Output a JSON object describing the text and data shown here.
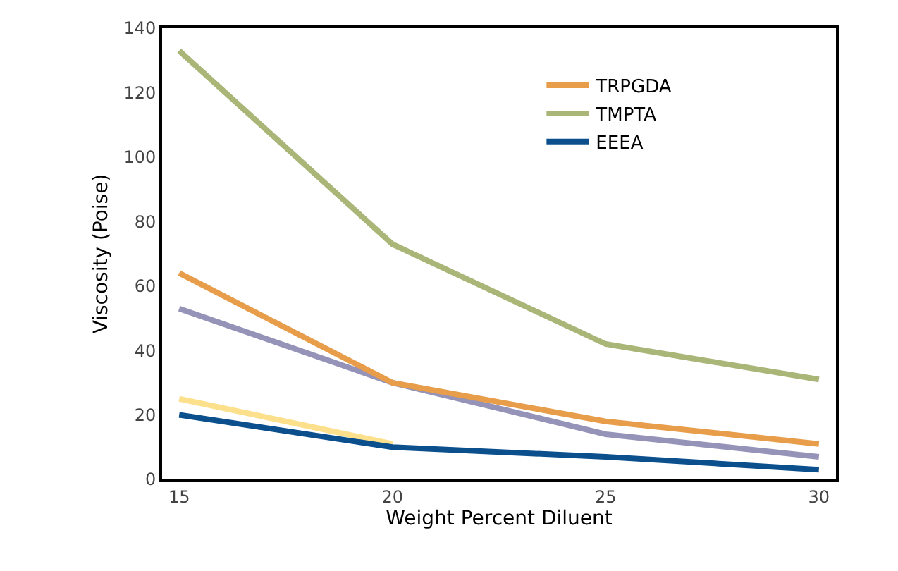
{
  "chart_data": {
    "type": "line",
    "xlabel": "Weight Percent Diluent",
    "ylabel": "Viscosity (Poise)",
    "x": [
      15,
      20,
      25,
      30
    ],
    "series": [
      {
        "color": "#fde08c",
        "values": [
          25,
          11,
          null,
          null
        ]
      },
      {
        "color": "#9593b8",
        "values": [
          53,
          30,
          14,
          7
        ]
      },
      {
        "name": "TRPGDA",
        "color": "#e79d4a",
        "values": [
          64,
          30,
          18,
          11
        ]
      },
      {
        "name": "TMPTA",
        "color": "#a9b677",
        "values": [
          133,
          73,
          42,
          31
        ]
      },
      {
        "name": "EEEA",
        "color": "#0b4f8d",
        "values": [
          20,
          10,
          7,
          3
        ]
      }
    ],
    "xlim": [
      14.6,
      30.4
    ],
    "xticks": [
      15,
      20,
      25,
      30
    ],
    "ylim": [
      0,
      140
    ],
    "yticks": [
      0,
      20,
      40,
      60,
      80,
      100,
      120,
      140
    ],
    "legend": "top right",
    "marker": "none",
    "line_style": "solid"
  }
}
